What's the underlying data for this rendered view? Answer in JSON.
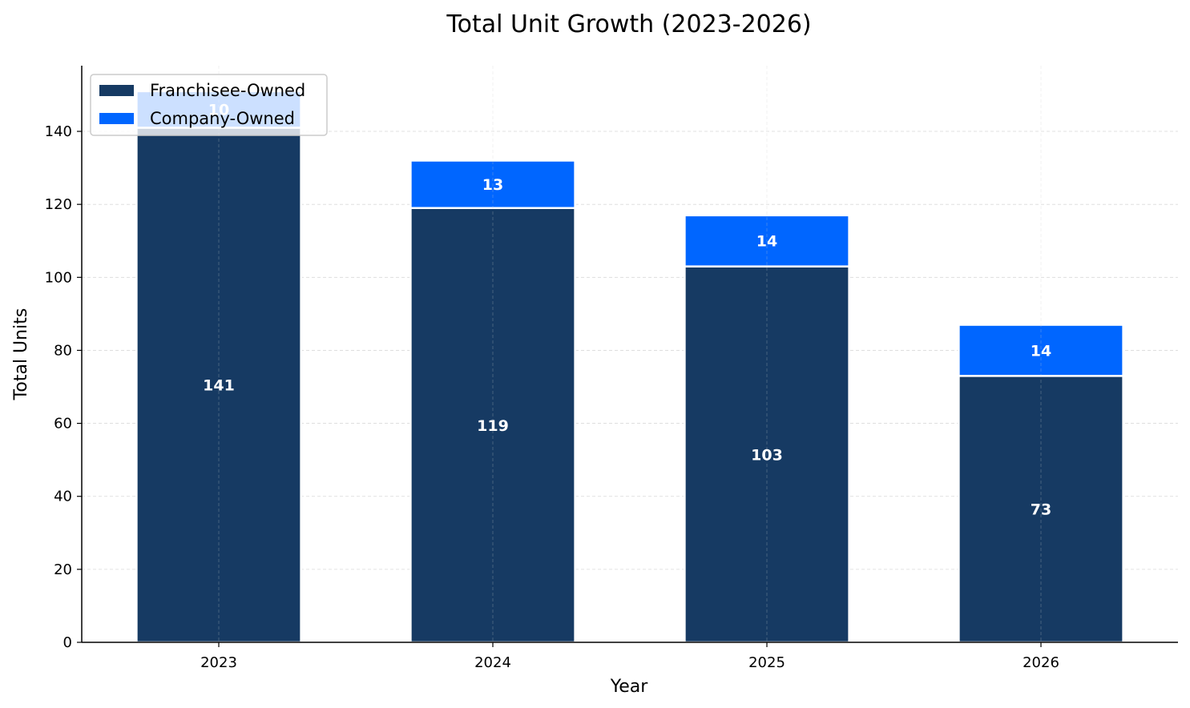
{
  "chart_data": {
    "type": "bar",
    "stacked": true,
    "title": "Total Unit Growth (2023-2026)",
    "xlabel": "Year",
    "ylabel": "Total Units",
    "categories": [
      "2023",
      "2024",
      "2025",
      "2026"
    ],
    "series": [
      {
        "name": "Franchisee-Owned",
        "color": "#163a63",
        "values": [
          141,
          119,
          103,
          73
        ]
      },
      {
        "name": "Company-Owned",
        "color": "#0066ff",
        "values": [
          10,
          13,
          14,
          14
        ]
      }
    ],
    "ylim": [
      0,
      158
    ],
    "yticks": [
      0,
      20,
      40,
      60,
      80,
      100,
      120,
      140
    ],
    "grid": true,
    "legend_position": "top-left"
  }
}
